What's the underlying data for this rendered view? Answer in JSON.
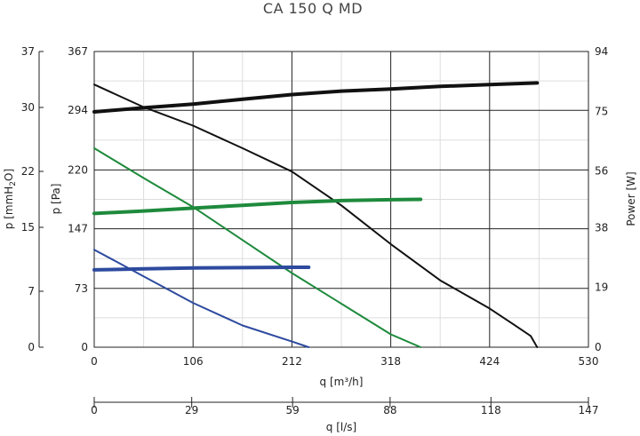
{
  "chart_data": {
    "type": "line",
    "title": "CA 150 Q MD",
    "xlabel": "q [m³/h]",
    "x2label": "q [l/s]",
    "ylabel_pressure": "p [Pa]",
    "ylabel_mmh2o_main": "p [mmH",
    "ylabel_mmh2o_sub": "2",
    "ylabel_mmh2o_end": "O]",
    "ylabel_power": "Power [W]",
    "xlim": [
      0,
      530
    ],
    "x_ticks": [
      "0",
      "106",
      "212",
      "318",
      "424",
      "530"
    ],
    "x_tick_values": [
      0,
      106,
      212,
      318,
      424,
      530
    ],
    "x2lim": [
      0,
      147
    ],
    "x2_ticks": [
      "0",
      "29",
      "59",
      "88",
      "118",
      "147"
    ],
    "x2_tick_values": [
      0,
      29,
      59,
      88,
      118,
      147
    ],
    "ylim_pressure": [
      0,
      367
    ],
    "y_pressure_ticks": [
      "0",
      "73",
      "147",
      "220",
      "294",
      "367"
    ],
    "y_pressure_tick_values": [
      0,
      73,
      147,
      220,
      294,
      367
    ],
    "ylim_mmh2o": [
      0,
      37
    ],
    "y_mmh2o_ticks": [
      "0",
      "7",
      "15",
      "22",
      "30",
      "37"
    ],
    "y_mmh2o_tick_values": [
      0,
      7,
      15,
      22,
      30,
      37
    ],
    "ylim_power": [
      0,
      94
    ],
    "y_power_ticks": [
      "0",
      "19",
      "38",
      "56",
      "75",
      "94"
    ],
    "y_power_tick_values": [
      0,
      19,
      38,
      56,
      75,
      94
    ],
    "grid": true,
    "series": [
      {
        "kind": "pressure",
        "color": "#111111",
        "x": [
          0,
          53,
          106,
          159,
          212,
          265,
          318,
          371,
          424,
          450,
          468,
          475
        ],
        "y": [
          326,
          298,
          275,
          247,
          218,
          176,
          128,
          83,
          48,
          28,
          14,
          0
        ]
      },
      {
        "kind": "pressure",
        "color": "#1e8a3c",
        "x": [
          0,
          53,
          106,
          159,
          212,
          265,
          318,
          350
        ],
        "y": [
          247,
          210,
          174,
          133,
          92,
          54,
          16,
          0
        ]
      },
      {
        "kind": "pressure",
        "color": "#2d4a9e",
        "x": [
          0,
          53,
          106,
          159,
          212,
          230
        ],
        "y": [
          121,
          88,
          55,
          27,
          7,
          0
        ]
      },
      {
        "kind": "power",
        "color": "#111111",
        "x": [
          0,
          53,
          106,
          159,
          212,
          265,
          318,
          371,
          424,
          475
        ],
        "y": [
          74.8,
          76.1,
          77.3,
          78.8,
          80.3,
          81.4,
          82.1,
          82.9,
          83.5,
          84.0
        ]
      },
      {
        "kind": "power",
        "color": "#1e8a3c",
        "x": [
          0,
          53,
          106,
          159,
          212,
          265,
          318,
          350
        ],
        "y": [
          42.5,
          43.3,
          44.2,
          45.1,
          46.0,
          46.6,
          46.9,
          47.0
        ]
      },
      {
        "kind": "power",
        "color": "#2d4a9e",
        "x": [
          0,
          53,
          106,
          159,
          212,
          230
        ],
        "y": [
          24.6,
          24.9,
          25.2,
          25.3,
          25.4,
          25.4
        ]
      }
    ]
  }
}
